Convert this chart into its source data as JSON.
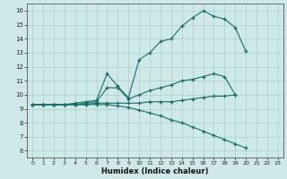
{
  "background_color": "#cfe8e8",
  "grid_color": "#a8cfcf",
  "line_color": "#1a6b6b",
  "xlabel": "Humidex (Indice chaleur)",
  "ylim": [
    5.5,
    16.5
  ],
  "xlim": [
    -0.5,
    23.5
  ],
  "yticks": [
    6,
    7,
    8,
    9,
    10,
    11,
    12,
    13,
    14,
    15,
    16
  ],
  "xticks": [
    0,
    1,
    2,
    3,
    4,
    5,
    6,
    7,
    8,
    9,
    10,
    11,
    12,
    13,
    14,
    15,
    16,
    17,
    18,
    19,
    20,
    21,
    22,
    23
  ],
  "line_max_x": [
    0,
    1,
    2,
    3,
    4,
    5,
    6,
    7,
    8,
    9,
    10,
    11,
    12,
    13,
    14,
    15,
    16,
    17,
    18,
    19,
    20,
    21,
    22,
    23
  ],
  "line_max_y": [
    9.3,
    9.3,
    9.3,
    9.3,
    9.4,
    9.5,
    9.6,
    11.5,
    10.6,
    9.8,
    12.5,
    13.0,
    13.8,
    14.0,
    14.9,
    15.5,
    16.0,
    15.6,
    15.4,
    14.8,
    13.1,
    null,
    null,
    null
  ],
  "line_mean_x": [
    0,
    1,
    2,
    3,
    4,
    5,
    6,
    7,
    8,
    9,
    10,
    11,
    12,
    13,
    14,
    15,
    16,
    17,
    18,
    19,
    20,
    21,
    22,
    23
  ],
  "line_mean_y": [
    9.3,
    9.3,
    9.3,
    9.3,
    9.3,
    9.4,
    9.5,
    10.5,
    10.5,
    9.7,
    10.0,
    10.3,
    10.5,
    10.7,
    11.0,
    11.1,
    11.3,
    11.5,
    11.3,
    10.0,
    null,
    null,
    null,
    null
  ],
  "line_flat_x": [
    0,
    1,
    2,
    3,
    4,
    5,
    6,
    7,
    8,
    9,
    10,
    11,
    12,
    13,
    14,
    15,
    16,
    17,
    18,
    19,
    20,
    21,
    22,
    23
  ],
  "line_flat_y": [
    9.3,
    9.3,
    9.3,
    9.3,
    9.3,
    9.3,
    9.4,
    9.4,
    9.4,
    9.4,
    9.4,
    9.5,
    9.5,
    9.5,
    9.6,
    9.7,
    9.8,
    9.9,
    9.9,
    10.0,
    null,
    null,
    null,
    null
  ],
  "line_min_x": [
    0,
    1,
    2,
    3,
    4,
    5,
    6,
    7,
    8,
    9,
    10,
    11,
    12,
    13,
    14,
    15,
    16,
    17,
    18,
    19,
    20,
    21,
    22,
    23
  ],
  "line_min_y": [
    9.3,
    9.3,
    9.3,
    9.3,
    9.3,
    9.3,
    9.3,
    9.3,
    9.2,
    9.1,
    8.9,
    8.7,
    8.5,
    8.2,
    8.0,
    7.7,
    7.4,
    7.1,
    6.8,
    6.5,
    6.2,
    null,
    null,
    null
  ]
}
